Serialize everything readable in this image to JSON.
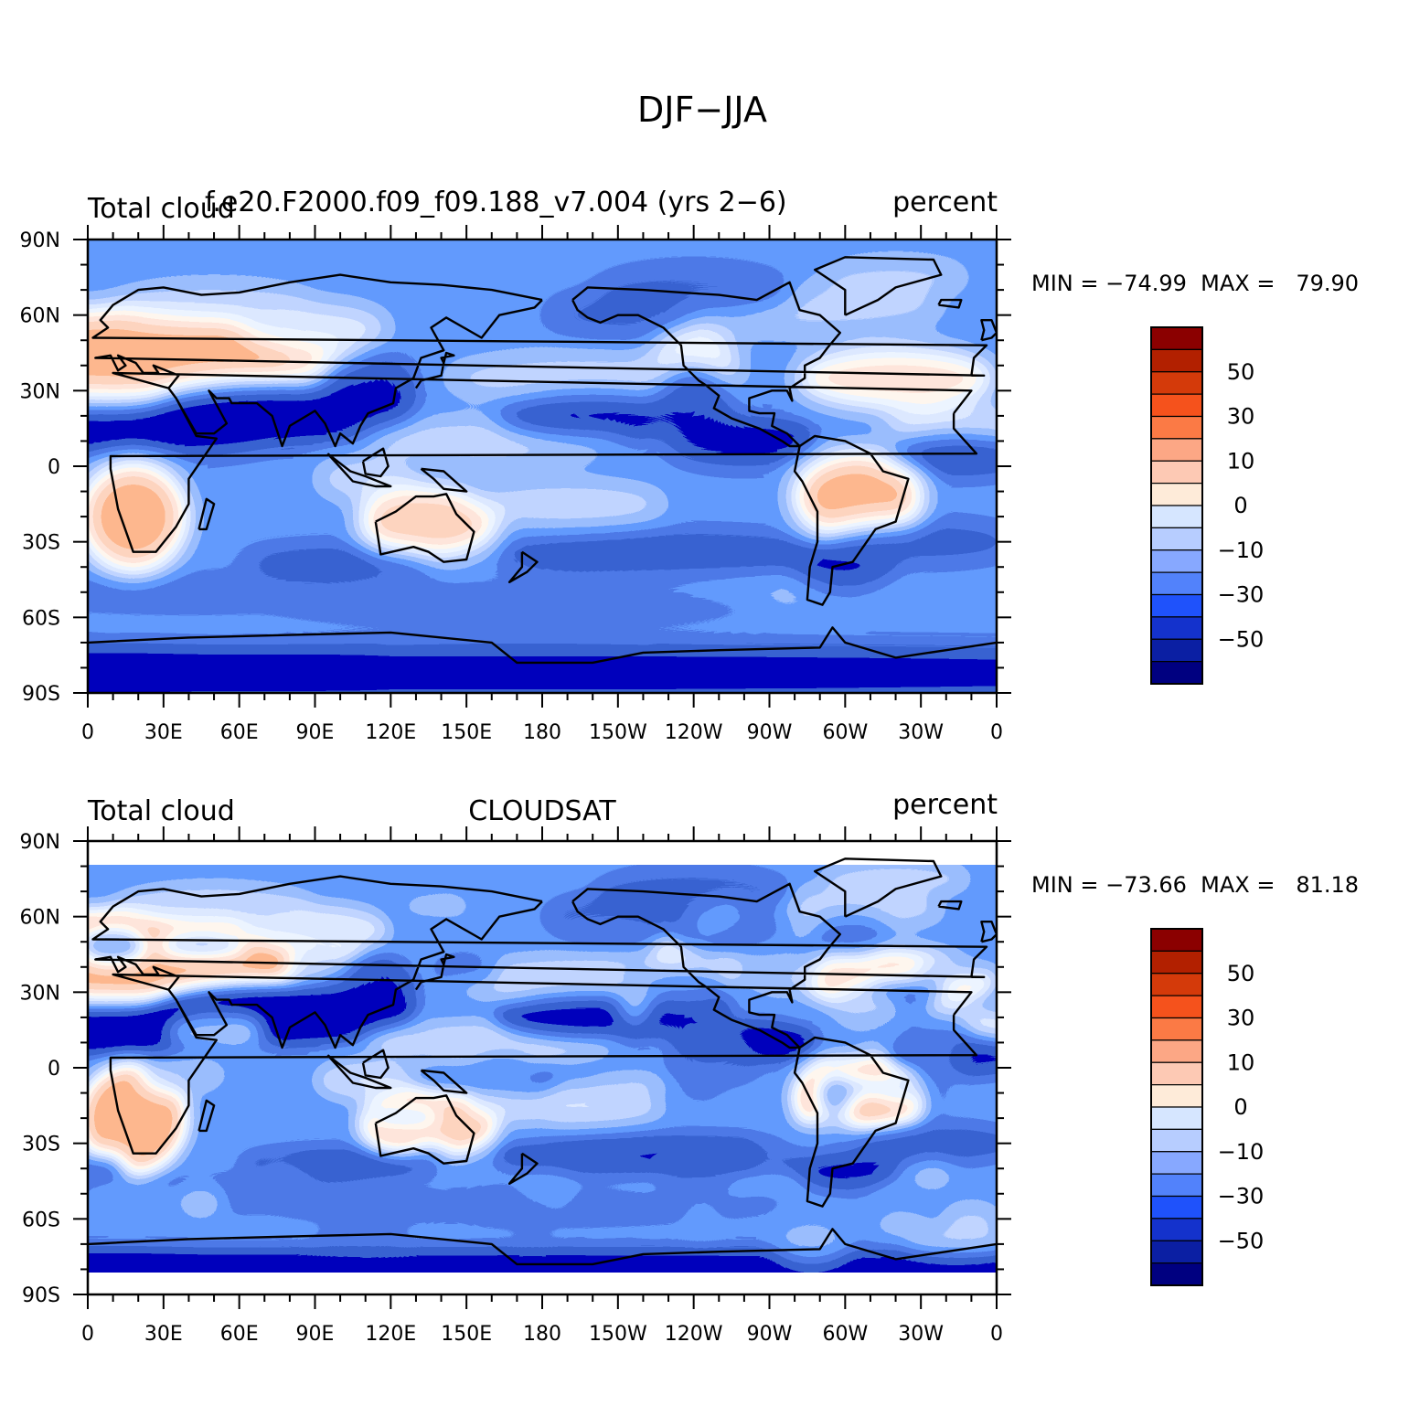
{
  "figure": {
    "title": "DJF−JJA"
  },
  "panels": [
    {
      "id": "model",
      "left_label": "Total cloud",
      "center_label": "f.e20.F2000.f09_f09.188_v7.004 (yrs 2−6)",
      "right_label": "percent",
      "stats": "MIN = −74.99  MAX =   79.90",
      "has_polar_gaps": false,
      "seed": 11
    },
    {
      "id": "cloudsat",
      "left_label": "Total cloud",
      "center_label": "CLOUDSAT",
      "right_label": "percent",
      "stats": "MIN = −73.66  MAX =   81.18",
      "has_polar_gaps": true,
      "seed": 29
    }
  ],
  "axes": {
    "lon_ticks": [
      "0",
      "30E",
      "60E",
      "90E",
      "120E",
      "150E",
      "180",
      "150W",
      "120W",
      "90W",
      "60W",
      "30W",
      "0"
    ],
    "lat_ticks": [
      "90N",
      "60N",
      "30N",
      "0",
      "30S",
      "60S",
      "90S"
    ]
  },
  "colorbar": {
    "labels": [
      "50",
      "30",
      "10",
      "0",
      "−10",
      "−30",
      "−50"
    ],
    "colors_top_to_bottom": [
      "#8b0000",
      "#b22000",
      "#d43a0a",
      "#f5521c",
      "#fb7a45",
      "#fca785",
      "#fdc9b4",
      "#feebd9",
      "#d6e6ff",
      "#b7cdff",
      "#87a8ff",
      "#5282fb",
      "#1f52fb",
      "#1432cc",
      "#0b1fa3",
      "#000080"
    ]
  }
}
